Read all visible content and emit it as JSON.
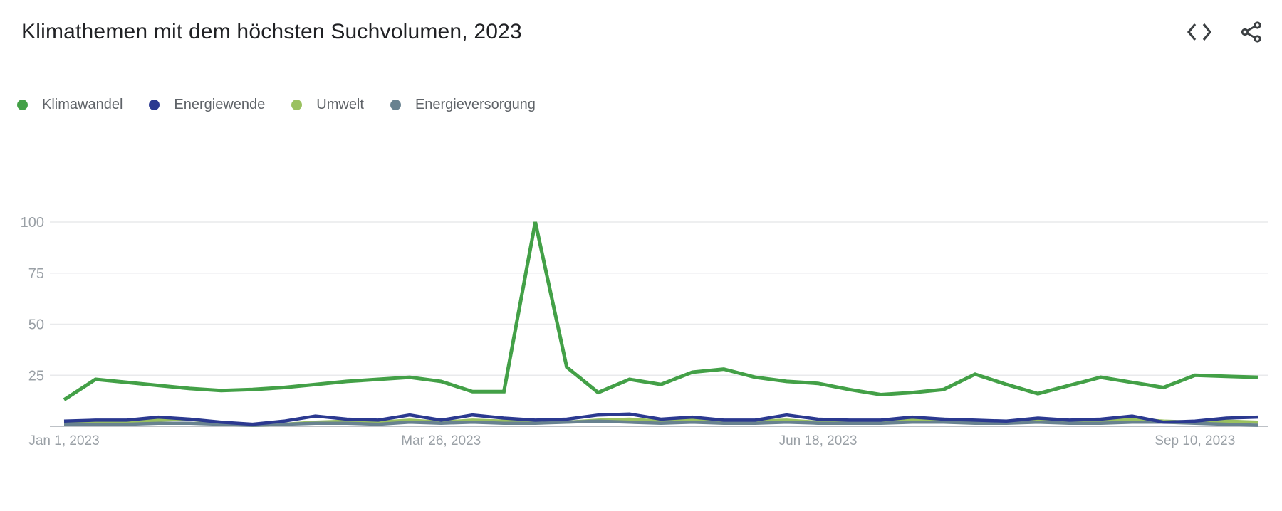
{
  "header": {
    "title": "Klimathemen mit dem höchsten Suchvolumen, 2023",
    "embed_icon": "embed-code-icon",
    "share_icon": "share-icon"
  },
  "colors": {
    "title_text": "#202124",
    "legend_text": "#5f6368",
    "axis_text": "#9aa0a6",
    "gridline": "#e9eaec",
    "axis_line": "#bdc1c6",
    "icon": "#3c4043"
  },
  "legend": {
    "items": [
      {
        "label": "Klimawandel",
        "color": "#43A047"
      },
      {
        "label": "Energiewende",
        "color": "#2B3990"
      },
      {
        "label": "Umwelt",
        "color": "#9AC15F"
      },
      {
        "label": "Energieversorgung",
        "color": "#688290"
      }
    ]
  },
  "chart_data": {
    "type": "line",
    "title": "Klimathemen mit dem höchsten Suchvolumen, 2023",
    "x_interval": "weekly",
    "n_points": 39,
    "x_ticks": [
      {
        "index": 0,
        "label": "Jan 1, 2023"
      },
      {
        "index": 12,
        "label": "Mar 26, 2023"
      },
      {
        "index": 24,
        "label": "Jun 18, 2023"
      },
      {
        "index": 36,
        "label": "Sep 10, 2023"
      }
    ],
    "y_ticks": [
      25,
      50,
      75,
      100
    ],
    "ylim": [
      0,
      100
    ],
    "grid": true,
    "legend_position": "top-left",
    "series": [
      {
        "name": "Klimawandel",
        "color": "#43A047",
        "stroke_width": 5,
        "values": [
          13,
          23,
          21.5,
          20,
          18.5,
          17.5,
          18,
          19,
          20.5,
          22,
          23,
          24,
          22,
          17,
          17,
          100,
          29,
          16.5,
          23,
          20.5,
          26.5,
          28,
          24,
          22,
          21,
          18,
          15.5,
          16.5,
          18,
          25.5,
          20.5,
          16,
          20,
          24,
          21.5,
          19,
          25,
          24.5,
          24
        ]
      },
      {
        "name": "Energiewende",
        "color": "#2B3990",
        "stroke_width": 4.5,
        "values": [
          2.5,
          3,
          3,
          4.5,
          3.5,
          2,
          1,
          2.5,
          5,
          3.5,
          3,
          5.5,
          3,
          5.5,
          4,
          3,
          3.5,
          5.5,
          6,
          3.5,
          4.5,
          3,
          3,
          5.5,
          3.5,
          3,
          3,
          4.5,
          3.5,
          3,
          2.5,
          4,
          3,
          3.5,
          5,
          2,
          2.5,
          4,
          4.5
        ]
      },
      {
        "name": "Umwelt",
        "color": "#9AC15F",
        "stroke_width": 4.5,
        "values": [
          1.5,
          2,
          2,
          3,
          3.5,
          1.5,
          0.5,
          1,
          2,
          2.5,
          2,
          3,
          2,
          3,
          2.5,
          2,
          2,
          3,
          3.5,
          2.5,
          3,
          2,
          2.5,
          3,
          2,
          2.5,
          2,
          3,
          3.5,
          2,
          2.5,
          3,
          2,
          2.5,
          3.5,
          2.5,
          2,
          2.5,
          2
        ]
      },
      {
        "name": "Energieversorgung",
        "color": "#688290",
        "stroke_width": 4.5,
        "values": [
          1,
          1,
          1,
          1.5,
          1.5,
          1,
          0.5,
          1,
          1.5,
          1.5,
          1,
          2,
          1.5,
          2,
          1.5,
          1.5,
          2,
          2.5,
          2,
          1.5,
          2,
          1.5,
          1.5,
          2,
          1.5,
          1.5,
          1.5,
          2,
          2,
          1.5,
          1.5,
          2,
          1.5,
          1.5,
          2,
          2,
          1.5,
          1,
          0.5
        ]
      }
    ]
  }
}
